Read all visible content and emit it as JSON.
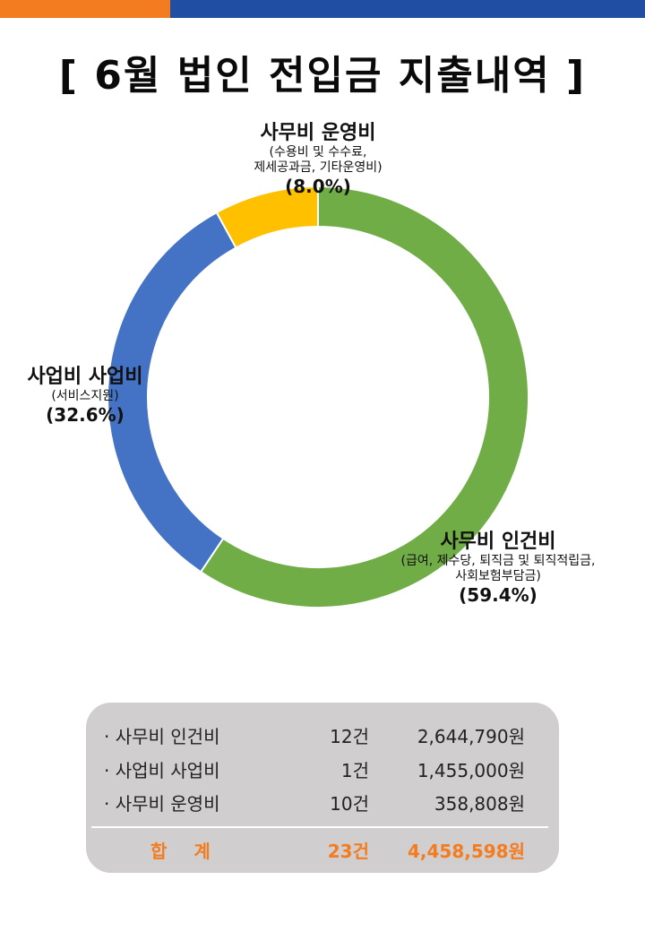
{
  "header": {
    "title": "[ 6월 법인 전입금 지출내역 ]"
  },
  "colors": {
    "accent_orange": "#f47c20",
    "accent_blue": "#1f4ea3"
  },
  "chart_data": {
    "type": "pie",
    "donut": true,
    "slices": [
      {
        "name": "사무비 인건비",
        "detail": [
          "(급여, 제수당, 퇴직금 및 퇴직적립금,",
          "사회보험부담금)"
        ],
        "value": 59.4,
        "label": "(59.4%)",
        "color": "#70ad47"
      },
      {
        "name": "사업비 사업비",
        "detail": [
          "(서비스지원)"
        ],
        "value": 32.6,
        "label": "(32.6%)",
        "color": "#4472c4"
      },
      {
        "name": "사무비 운영비",
        "detail": [
          "(수용비 및 수수료,",
          "제세공과금, 기타운영비)"
        ],
        "value": 8.0,
        "label": "(8.0%)",
        "color": "#ffc000"
      }
    ]
  },
  "summary": {
    "rows": [
      {
        "name": "· 사무비 인건비",
        "count": "12건",
        "amount": "2,644,790원"
      },
      {
        "name": "· 사업비 사업비",
        "count": "1건",
        "amount": "1,455,000원"
      },
      {
        "name": "· 사무비 운영비",
        "count": "10건",
        "amount": "358,808원"
      }
    ],
    "total": {
      "name": "합계",
      "count": "23건",
      "amount": "4,458,598원"
    }
  }
}
